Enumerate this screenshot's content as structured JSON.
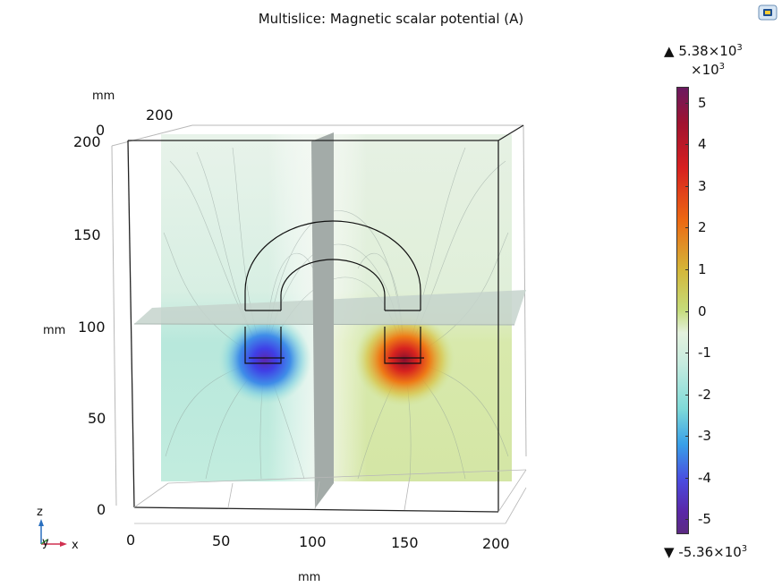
{
  "title": "Multislice: Magnetic scalar potential (A)",
  "logo_icon": "comsol-logo-icon",
  "axes": {
    "z_unit": "mm",
    "z_ticks": [
      "0",
      "50",
      "100",
      "150",
      "200"
    ],
    "x_unit": "mm",
    "x_ticks": [
      "0",
      "50",
      "100",
      "150",
      "200"
    ],
    "y_unit": "mm",
    "y_ticks": [
      "0",
      "200"
    ]
  },
  "triad": {
    "z": "z",
    "y": "y",
    "x": "x"
  },
  "colorbar": {
    "max_label": "5.38×10",
    "max_exp": "3",
    "scale_label": "×10",
    "scale_exp": "3",
    "ticks": [
      "5",
      "4",
      "3",
      "2",
      "1",
      "0",
      "-1",
      "-2",
      "-3",
      "-4",
      "-5"
    ],
    "min_label": "-5.36×10",
    "min_exp": "3",
    "max_marker": "▲",
    "min_marker": "▼"
  },
  "colors": {
    "positive_peak": "#d72020",
    "negative_peak": "#4a4ce0",
    "slice_gray": "#a3aba8"
  }
}
